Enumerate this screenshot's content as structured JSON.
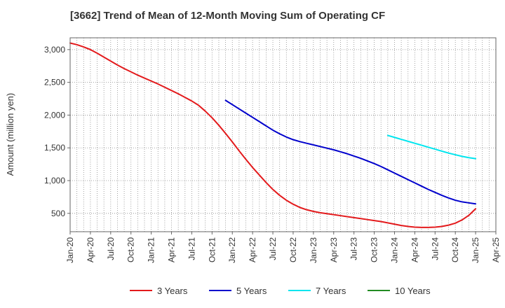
{
  "chart_data": {
    "type": "line",
    "title": "[3662]  Trend of Mean of 12-Month Moving Sum of Operating CF",
    "xlabel": "",
    "ylabel": "Amount (million yen)",
    "ylim": [
      220,
      3180
    ],
    "yticks": [
      500,
      1000,
      1500,
      2000,
      2500,
      3000
    ],
    "ytick_labels": [
      "500",
      "1,000",
      "1,500",
      "2,000",
      "2,500",
      "3,000"
    ],
    "xlim": [
      "2020-01",
      "2025-04"
    ],
    "xtick_labels": [
      "Jan-20",
      "Apr-20",
      "Jul-20",
      "Oct-20",
      "Jan-21",
      "Apr-21",
      "Jul-21",
      "Oct-21",
      "Jan-22",
      "Apr-22",
      "Jul-22",
      "Oct-22",
      "Jan-23",
      "Apr-23",
      "Jul-23",
      "Oct-23",
      "Jan-24",
      "Apr-24",
      "Jul-24",
      "Oct-24",
      "Jan-25",
      "Apr-25"
    ],
    "grid": true,
    "legend_position": "bottom",
    "series": [
      {
        "name": "3 Years",
        "color": "#e31a1c",
        "x": [
          "2020-01",
          "2020-02",
          "2020-03",
          "2020-04",
          "2020-05",
          "2020-06",
          "2020-07",
          "2020-08",
          "2020-09",
          "2020-10",
          "2020-11",
          "2020-12",
          "2021-01",
          "2021-02",
          "2021-03",
          "2021-04",
          "2021-05",
          "2021-06",
          "2021-07",
          "2021-08",
          "2021-09",
          "2021-10",
          "2021-11",
          "2021-12",
          "2022-01",
          "2022-02",
          "2022-03",
          "2022-04",
          "2022-05",
          "2022-06",
          "2022-07",
          "2022-08",
          "2022-09",
          "2022-10",
          "2022-11",
          "2022-12",
          "2023-01",
          "2023-02",
          "2023-03",
          "2023-04",
          "2023-05",
          "2023-06",
          "2023-07",
          "2023-08",
          "2023-09",
          "2023-10",
          "2023-11",
          "2023-12",
          "2024-01",
          "2024-02",
          "2024-03",
          "2024-04",
          "2024-05",
          "2024-06",
          "2024-07",
          "2024-08",
          "2024-09",
          "2024-10",
          "2024-11",
          "2024-12",
          "2025-01"
        ],
        "values": [
          3100,
          3075,
          3040,
          3000,
          2945,
          2885,
          2825,
          2765,
          2710,
          2660,
          2610,
          2565,
          2520,
          2475,
          2425,
          2375,
          2325,
          2270,
          2215,
          2150,
          2060,
          1960,
          1845,
          1720,
          1590,
          1455,
          1325,
          1200,
          1085,
          970,
          865,
          775,
          700,
          640,
          590,
          555,
          530,
          510,
          495,
          480,
          465,
          450,
          435,
          420,
          405,
          390,
          375,
          355,
          335,
          315,
          300,
          290,
          285,
          285,
          290,
          300,
          320,
          350,
          400,
          470,
          570
        ]
      },
      {
        "name": "5 Years",
        "color": "#0000cc",
        "x": [
          "2021-12",
          "2022-01",
          "2022-02",
          "2022-03",
          "2022-04",
          "2022-05",
          "2022-06",
          "2022-07",
          "2022-08",
          "2022-09",
          "2022-10",
          "2022-11",
          "2022-12",
          "2023-01",
          "2023-02",
          "2023-03",
          "2023-04",
          "2023-05",
          "2023-06",
          "2023-07",
          "2023-08",
          "2023-09",
          "2023-10",
          "2023-11",
          "2023-12",
          "2024-01",
          "2024-02",
          "2024-03",
          "2024-04",
          "2024-05",
          "2024-06",
          "2024-07",
          "2024-08",
          "2024-09",
          "2024-10",
          "2024-11",
          "2024-12",
          "2025-01"
        ],
        "values": [
          2225,
          2160,
          2095,
          2030,
          1965,
          1900,
          1835,
          1770,
          1715,
          1665,
          1625,
          1595,
          1570,
          1545,
          1520,
          1495,
          1470,
          1440,
          1410,
          1375,
          1340,
          1300,
          1260,
          1215,
          1165,
          1115,
          1065,
          1015,
          965,
          915,
          865,
          820,
          775,
          735,
          700,
          675,
          660,
          645
        ]
      },
      {
        "name": "7 Years",
        "color": "#00e5ee",
        "x": [
          "2023-12",
          "2024-01",
          "2024-02",
          "2024-03",
          "2024-04",
          "2024-05",
          "2024-06",
          "2024-07",
          "2024-08",
          "2024-09",
          "2024-10",
          "2024-11",
          "2024-12",
          "2025-01"
        ],
        "values": [
          1690,
          1660,
          1630,
          1600,
          1570,
          1540,
          1510,
          1480,
          1450,
          1420,
          1395,
          1370,
          1350,
          1335
        ]
      },
      {
        "name": "10 Years",
        "color": "#228b22",
        "x": [],
        "values": []
      }
    ]
  }
}
